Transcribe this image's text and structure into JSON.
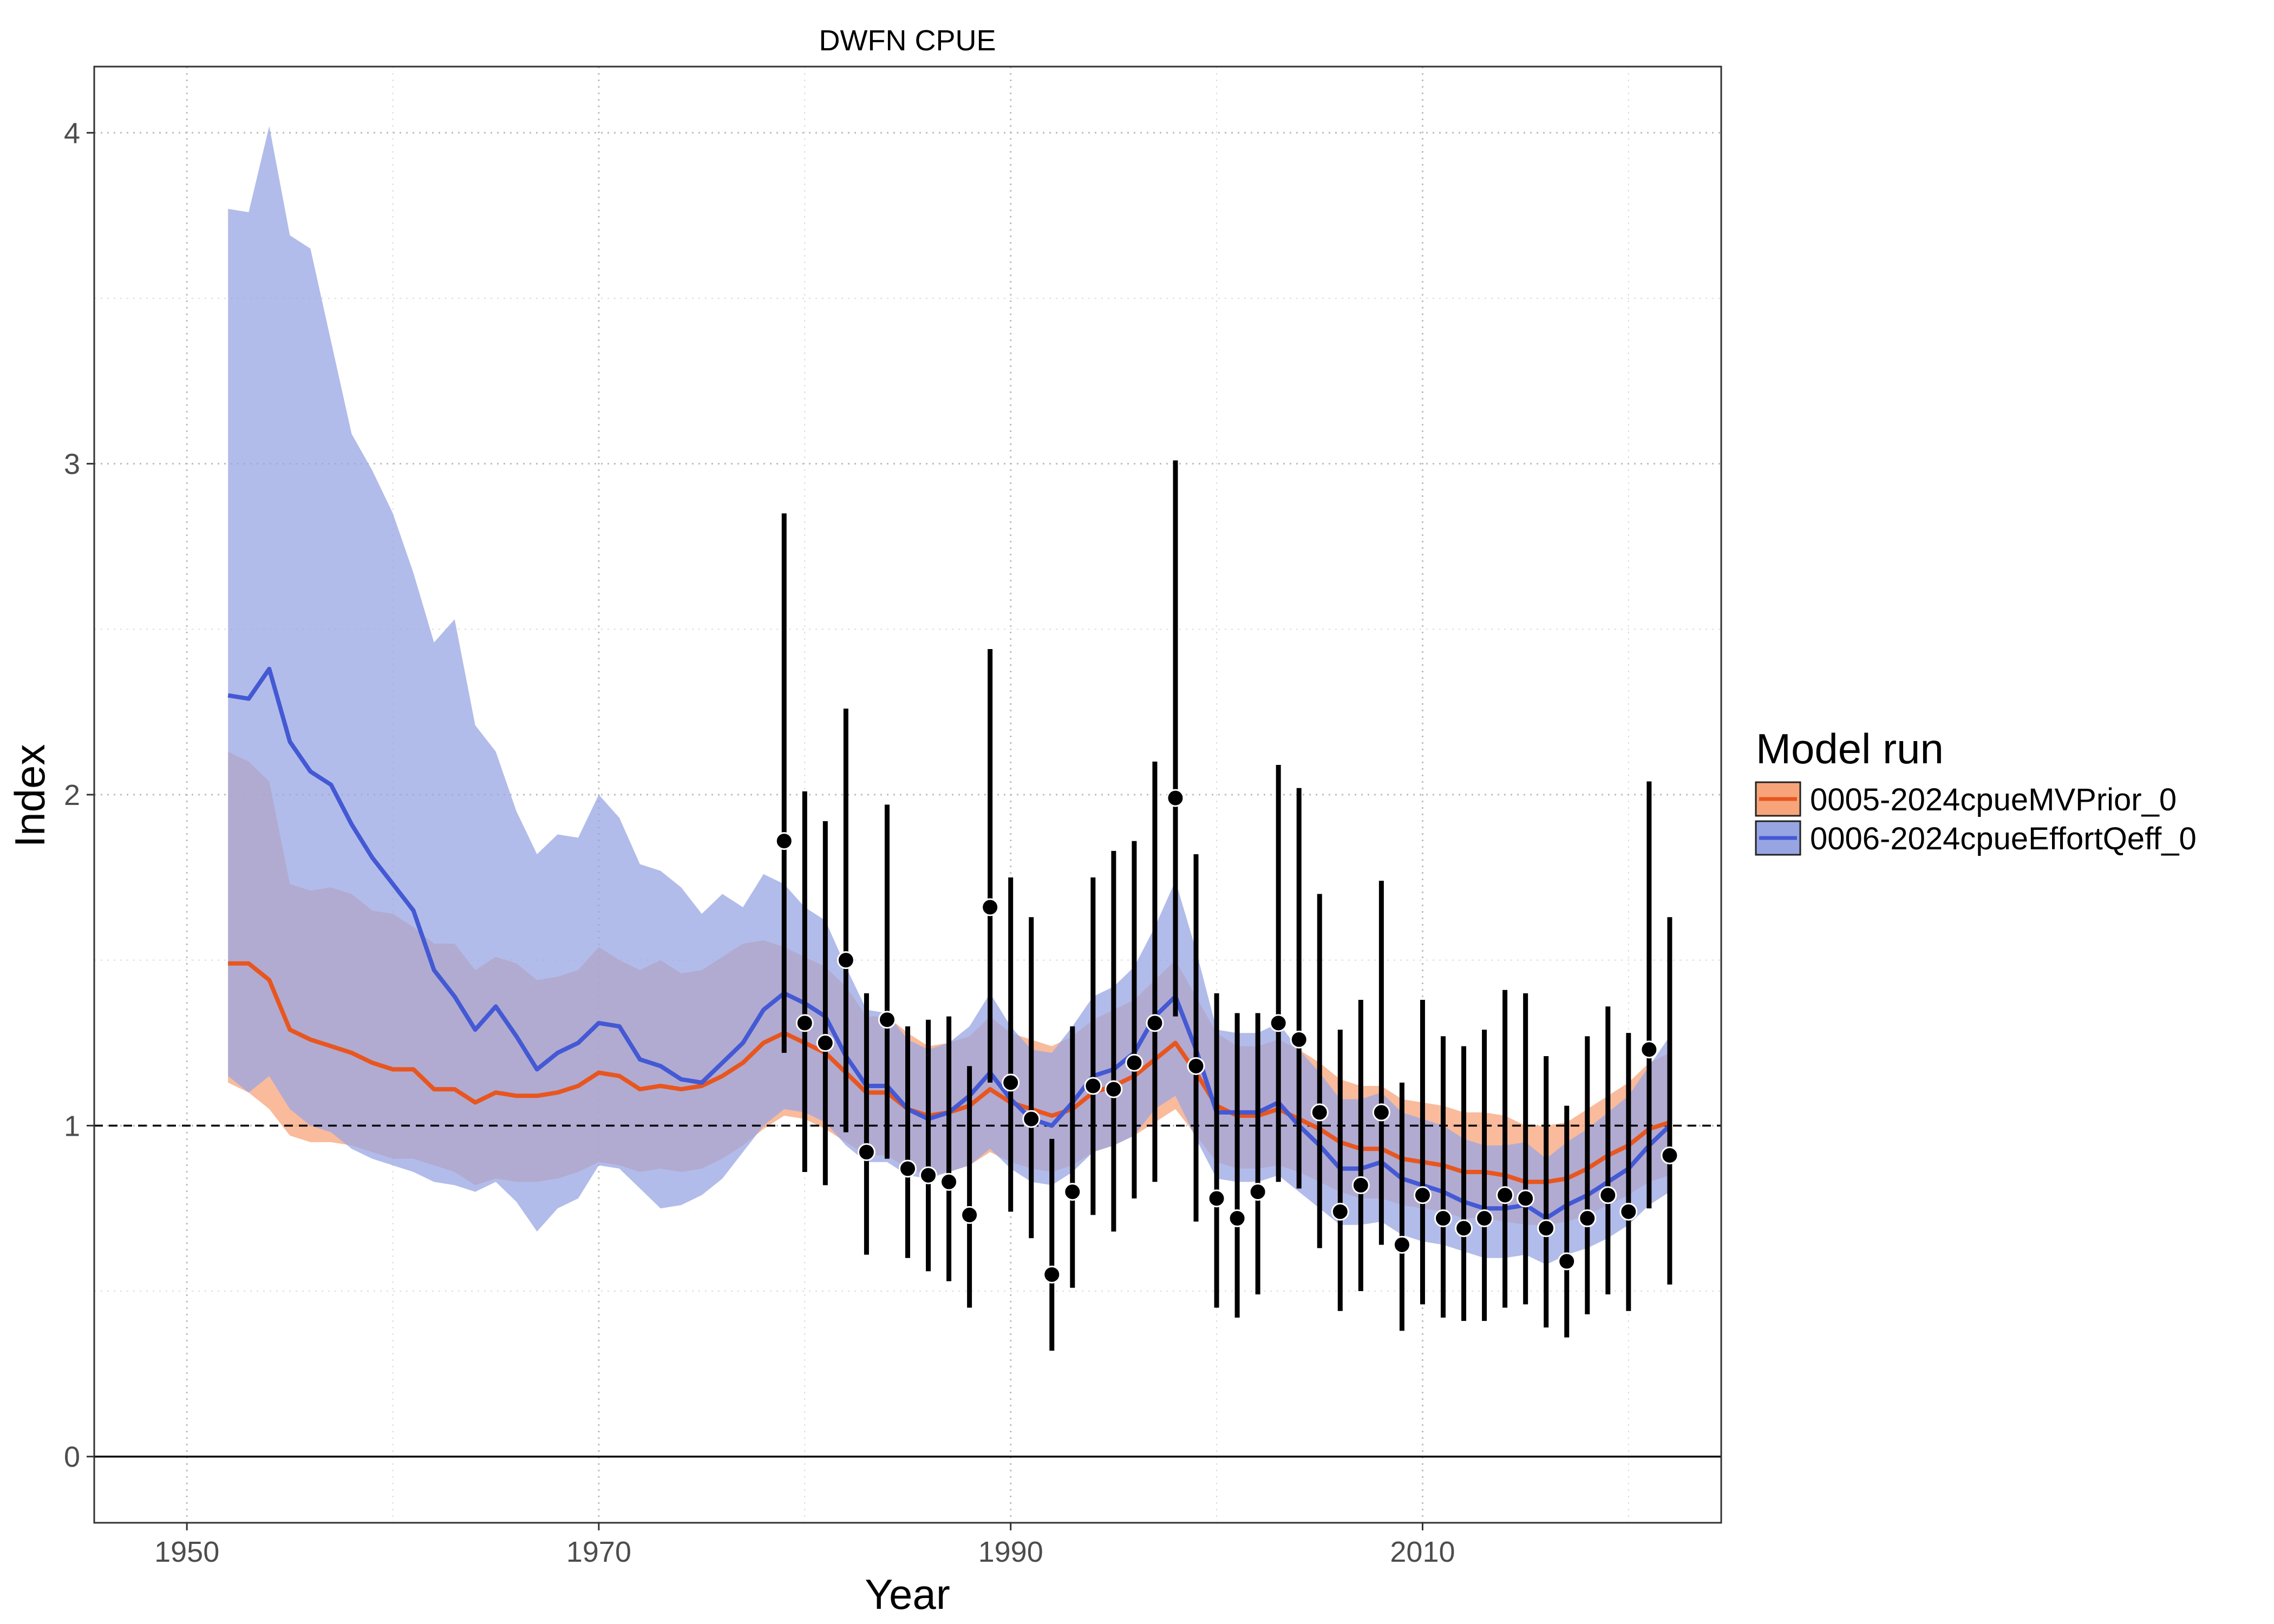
{
  "chart_data": {
    "type": "line",
    "title": "DWFN CPUE",
    "xlabel": "Year",
    "ylabel": "Index",
    "xlim": [
      1945.5,
      2024.5
    ],
    "ylim": [
      -0.2,
      4.2
    ],
    "x_ticks": [
      1950,
      1970,
      1990,
      2010
    ],
    "y_ticks": [
      0,
      1,
      2,
      3,
      4
    ],
    "reference_lines": [
      {
        "y": 1,
        "style": "dashed"
      },
      {
        "y": 0,
        "style": "solid"
      }
    ],
    "grid": true,
    "legend": {
      "title": "Model run",
      "placement": "right"
    },
    "series": [
      {
        "name": "0005-2024cpueMVPrior_0",
        "color": "#e8561f",
        "fill": "#f7a47a",
        "x": [
          1952,
          1953,
          1954,
          1955,
          1956,
          1957,
          1958,
          1959,
          1960,
          1961,
          1962,
          1963,
          1964,
          1965,
          1966,
          1967,
          1968,
          1969,
          1970,
          1971,
          1972,
          1973,
          1974,
          1975,
          1976,
          1977,
          1978,
          1979,
          1980,
          1981,
          1982,
          1983,
          1984,
          1985,
          1986,
          1987,
          1988,
          1989,
          1990,
          1991,
          1992,
          1993,
          1994,
          1995,
          1996,
          1997,
          1998,
          1999,
          2000,
          2001,
          2002,
          2003,
          2004,
          2005,
          2006,
          2007,
          2008,
          2009,
          2010,
          2011,
          2012,
          2013,
          2014,
          2015,
          2016,
          2017,
          2018,
          2019,
          2020,
          2021,
          2022
        ],
        "mean": [
          1.49,
          1.49,
          1.44,
          1.29,
          1.26,
          1.24,
          1.22,
          1.19,
          1.17,
          1.17,
          1.11,
          1.11,
          1.07,
          1.1,
          1.09,
          1.09,
          1.1,
          1.12,
          1.16,
          1.15,
          1.11,
          1.12,
          1.11,
          1.12,
          1.15,
          1.19,
          1.25,
          1.28,
          1.25,
          1.22,
          1.16,
          1.1,
          1.1,
          1.05,
          1.03,
          1.04,
          1.06,
          1.11,
          1.07,
          1.05,
          1.03,
          1.05,
          1.1,
          1.12,
          1.15,
          1.2,
          1.25,
          1.16,
          1.06,
          1.03,
          1.03,
          1.05,
          1.02,
          0.99,
          0.95,
          0.93,
          0.93,
          0.9,
          0.89,
          0.88,
          0.86,
          0.86,
          0.85,
          0.83,
          0.83,
          0.84,
          0.87,
          0.91,
          0.94,
          0.99,
          1.01
        ],
        "lower": [
          1.13,
          1.1,
          1.05,
          0.97,
          0.95,
          0.95,
          0.94,
          0.92,
          0.9,
          0.9,
          0.88,
          0.86,
          0.82,
          0.84,
          0.83,
          0.83,
          0.84,
          0.86,
          0.89,
          0.88,
          0.86,
          0.87,
          0.86,
          0.87,
          0.9,
          0.94,
          0.99,
          1.03,
          1.02,
          0.99,
          0.95,
          0.91,
          0.91,
          0.87,
          0.85,
          0.86,
          0.88,
          0.92,
          0.89,
          0.87,
          0.86,
          0.88,
          0.92,
          0.94,
          0.97,
          1.01,
          1.05,
          0.97,
          0.89,
          0.87,
          0.87,
          0.88,
          0.86,
          0.83,
          0.8,
          0.78,
          0.78,
          0.76,
          0.75,
          0.74,
          0.72,
          0.72,
          0.71,
          0.7,
          0.7,
          0.71,
          0.73,
          0.76,
          0.79,
          0.83,
          0.85
        ],
        "upper": [
          2.13,
          2.1,
          2.04,
          1.73,
          1.71,
          1.72,
          1.7,
          1.65,
          1.64,
          1.6,
          1.55,
          1.55,
          1.47,
          1.51,
          1.49,
          1.44,
          1.45,
          1.47,
          1.54,
          1.5,
          1.47,
          1.5,
          1.46,
          1.47,
          1.51,
          1.55,
          1.56,
          1.54,
          1.51,
          1.48,
          1.42,
          1.33,
          1.33,
          1.28,
          1.24,
          1.25,
          1.27,
          1.33,
          1.28,
          1.26,
          1.24,
          1.27,
          1.32,
          1.35,
          1.38,
          1.44,
          1.5,
          1.39,
          1.28,
          1.24,
          1.24,
          1.26,
          1.23,
          1.19,
          1.14,
          1.12,
          1.12,
          1.08,
          1.07,
          1.06,
          1.04,
          1.04,
          1.03,
          1.0,
          1.0,
          1.01,
          1.05,
          1.09,
          1.13,
          1.19,
          1.22
        ]
      },
      {
        "name": "0006-2024cpueEffortQeff_0",
        "color": "#4459d4",
        "fill": "#98a5e3",
        "x": [
          1952,
          1953,
          1954,
          1955,
          1956,
          1957,
          1958,
          1959,
          1960,
          1961,
          1962,
          1963,
          1964,
          1965,
          1966,
          1967,
          1968,
          1969,
          1970,
          1971,
          1972,
          1973,
          1974,
          1975,
          1976,
          1977,
          1978,
          1979,
          1980,
          1981,
          1982,
          1983,
          1984,
          1985,
          1986,
          1987,
          1988,
          1989,
          1990,
          1991,
          1992,
          1993,
          1994,
          1995,
          1996,
          1997,
          1998,
          1999,
          2000,
          2001,
          2002,
          2003,
          2004,
          2005,
          2006,
          2007,
          2008,
          2009,
          2010,
          2011,
          2012,
          2013,
          2014,
          2015,
          2016,
          2017,
          2018,
          2019,
          2020,
          2021,
          2022
        ],
        "mean": [
          2.3,
          2.29,
          2.38,
          2.16,
          2.07,
          2.03,
          1.91,
          1.81,
          1.73,
          1.65,
          1.47,
          1.39,
          1.29,
          1.36,
          1.27,
          1.17,
          1.22,
          1.25,
          1.31,
          1.3,
          1.2,
          1.18,
          1.14,
          1.13,
          1.19,
          1.25,
          1.35,
          1.4,
          1.37,
          1.33,
          1.21,
          1.12,
          1.12,
          1.05,
          1.02,
          1.04,
          1.09,
          1.16,
          1.08,
          1.02,
          1.0,
          1.07,
          1.15,
          1.17,
          1.22,
          1.33,
          1.39,
          1.23,
          1.04,
          1.04,
          1.04,
          1.07,
          1.0,
          0.94,
          0.87,
          0.87,
          0.89,
          0.84,
          0.82,
          0.8,
          0.77,
          0.75,
          0.75,
          0.76,
          0.72,
          0.76,
          0.79,
          0.83,
          0.87,
          0.94,
          1.0
        ],
        "lower": [
          1.15,
          1.1,
          1.15,
          1.05,
          1.0,
          0.98,
          0.93,
          0.9,
          0.88,
          0.86,
          0.83,
          0.82,
          0.8,
          0.83,
          0.77,
          0.68,
          0.75,
          0.78,
          0.88,
          0.87,
          0.81,
          0.75,
          0.76,
          0.79,
          0.84,
          0.92,
          1.0,
          1.05,
          1.04,
          1.01,
          0.94,
          0.89,
          0.89,
          0.85,
          0.84,
          0.86,
          0.88,
          0.93,
          0.87,
          0.83,
          0.82,
          0.86,
          0.92,
          0.94,
          0.97,
          1.05,
          1.09,
          0.96,
          0.84,
          0.83,
          0.83,
          0.85,
          0.8,
          0.75,
          0.7,
          0.7,
          0.71,
          0.67,
          0.65,
          0.64,
          0.62,
          0.6,
          0.6,
          0.61,
          0.58,
          0.61,
          0.63,
          0.66,
          0.7,
          0.76,
          0.8
        ],
        "upper": [
          3.77,
          3.76,
          4.02,
          3.69,
          3.65,
          3.37,
          3.09,
          2.98,
          2.85,
          2.67,
          2.46,
          2.53,
          2.21,
          2.13,
          1.95,
          1.82,
          1.88,
          1.87,
          2.0,
          1.93,
          1.79,
          1.77,
          1.72,
          1.64,
          1.7,
          1.66,
          1.76,
          1.73,
          1.66,
          1.62,
          1.48,
          1.35,
          1.34,
          1.26,
          1.23,
          1.25,
          1.3,
          1.4,
          1.3,
          1.23,
          1.22,
          1.3,
          1.39,
          1.42,
          1.48,
          1.6,
          1.74,
          1.53,
          1.29,
          1.28,
          1.28,
          1.31,
          1.23,
          1.16,
          1.08,
          1.08,
          1.1,
          1.04,
          1.02,
          1.0,
          0.96,
          0.94,
          0.94,
          0.95,
          0.9,
          0.95,
          0.99,
          1.04,
          1.09,
          1.18,
          1.27
        ]
      }
    ],
    "observed": {
      "x": [
        1979,
        1980,
        1981,
        1982,
        1983,
        1984,
        1985,
        1986,
        1987,
        1988,
        1989,
        1990,
        1991,
        1992,
        1993,
        1994,
        1995,
        1996,
        1997,
        1998,
        1999,
        2000,
        2001,
        2002,
        2003,
        2004,
        2005,
        2006,
        2007,
        2008,
        2009,
        2010,
        2011,
        2012,
        2013,
        2014,
        2015,
        2016,
        2017,
        2018,
        2019,
        2020,
        2021,
        2022
      ],
      "y": [
        1.86,
        1.31,
        1.25,
        1.5,
        0.92,
        1.32,
        0.87,
        0.85,
        0.83,
        0.73,
        1.66,
        1.13,
        1.02,
        0.55,
        0.8,
        1.12,
        1.11,
        1.19,
        1.31,
        1.99,
        1.18,
        0.78,
        0.72,
        0.8,
        1.31,
        1.26,
        1.04,
        0.74,
        0.82,
        1.04,
        0.64,
        0.79,
        0.72,
        0.69,
        0.72,
        0.79,
        0.78,
        0.69,
        0.59,
        0.72,
        0.79,
        0.74,
        1.23,
        0.91
      ],
      "lower": [
        1.22,
        0.86,
        0.82,
        0.98,
        0.61,
        0.9,
        0.6,
        0.56,
        0.53,
        0.45,
        1.13,
        0.74,
        0.66,
        0.32,
        0.51,
        0.73,
        0.68,
        0.78,
        0.83,
        1.33,
        0.71,
        0.45,
        0.42,
        0.49,
        0.83,
        0.81,
        0.63,
        0.44,
        0.5,
        0.64,
        0.38,
        0.46,
        0.42,
        0.41,
        0.41,
        0.45,
        0.46,
        0.39,
        0.36,
        0.43,
        0.49,
        0.44,
        0.75,
        0.52
      ],
      "upper": [
        2.85,
        2.01,
        1.92,
        2.26,
        1.4,
        1.97,
        1.3,
        1.32,
        1.33,
        1.18,
        2.44,
        1.75,
        1.63,
        0.96,
        1.3,
        1.75,
        1.83,
        1.86,
        2.1,
        3.01,
        1.82,
        1.4,
        1.34,
        1.34,
        2.09,
        2.02,
        1.7,
        1.29,
        1.38,
        1.74,
        1.13,
        1.38,
        1.27,
        1.24,
        1.29,
        1.41,
        1.4,
        1.21,
        1.06,
        1.27,
        1.36,
        1.28,
        2.04,
        1.63
      ]
    }
  }
}
